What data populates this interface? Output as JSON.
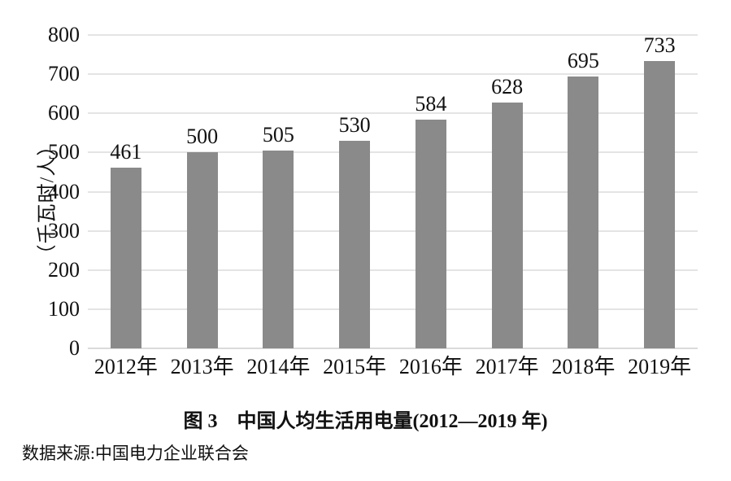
{
  "chart_data": {
    "type": "bar",
    "categories": [
      "2012年",
      "2013年",
      "2014年",
      "2015年",
      "2016年",
      "2017年",
      "2018年",
      "2019年"
    ],
    "values": [
      461,
      500,
      505,
      530,
      584,
      628,
      695,
      733
    ],
    "title": "图 3　中国人均生活用电量(2012—2019 年)",
    "xlabel": "",
    "ylabel": "（千瓦时/人）",
    "ylim": [
      0,
      800
    ],
    "yticks": [
      0,
      100,
      200,
      300,
      400,
      500,
      600,
      700,
      800
    ],
    "grid": true,
    "legend": "none",
    "value_labels": true,
    "bar_color": "#8a8a8a",
    "gridline_color": "#e4e4e4",
    "text_color": "#111111"
  },
  "figure": {
    "caption": "图 3　中国人均生活用电量(2012—2019 年)",
    "source": "数据来源:中国电力企业联合会"
  }
}
